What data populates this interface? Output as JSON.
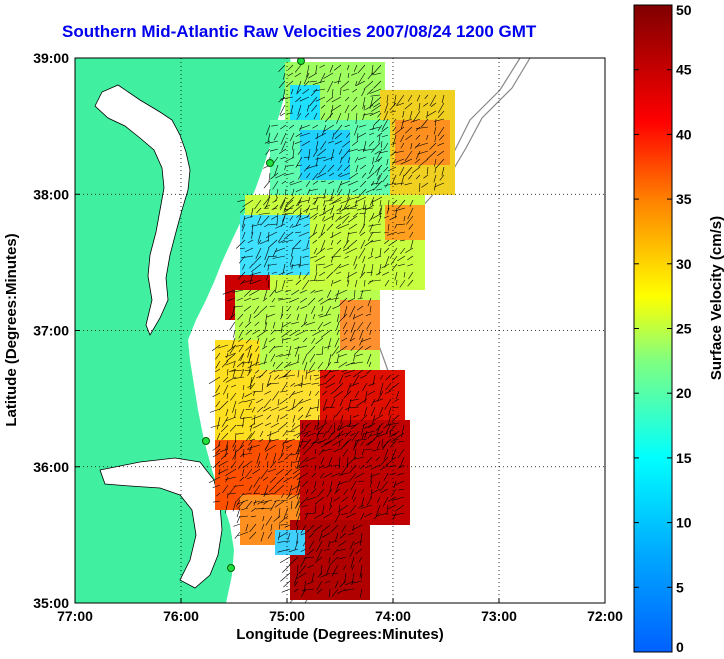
{
  "chart_data": {
    "type": "heatmap",
    "title": "Southern Mid-Atlantic Raw Velocities 2007/08/24 1200 GMT",
    "xlabel": "Longitude (Degrees:Minutes)",
    "ylabel": "Latitude (Degrees:Minutes)",
    "xlim": [
      -77,
      -72
    ],
    "ylim": [
      35,
      39
    ],
    "x_ticks": [
      {
        "value": -77,
        "label": "77:00"
      },
      {
        "value": -76,
        "label": "76:00"
      },
      {
        "value": -75,
        "label": "75:00"
      },
      {
        "value": -74,
        "label": "74:00"
      },
      {
        "value": -73,
        "label": "73:00"
      },
      {
        "value": -72,
        "label": "72:00"
      }
    ],
    "y_ticks": [
      {
        "value": 35,
        "label": "35:00"
      },
      {
        "value": 36,
        "label": "36:00"
      },
      {
        "value": 37,
        "label": "37:00"
      },
      {
        "value": 38,
        "label": "38:00"
      },
      {
        "value": 39,
        "label": "39:00"
      }
    ],
    "grid": true,
    "colorbar": {
      "label": "Surface Velocity (cm/s)",
      "range": [
        0,
        50
      ],
      "ticks": [
        "0",
        "5",
        "10",
        "15",
        "20",
        "25",
        "30",
        "35",
        "40",
        "45",
        "50"
      ],
      "colormap": [
        "#0000ff",
        "#00ffff",
        "#ffff00",
        "#ff0000",
        "#800000"
      ]
    },
    "colors": {
      "land": "#40f0a0",
      "water": "#ffffff",
      "title": "#0000ee"
    }
  }
}
